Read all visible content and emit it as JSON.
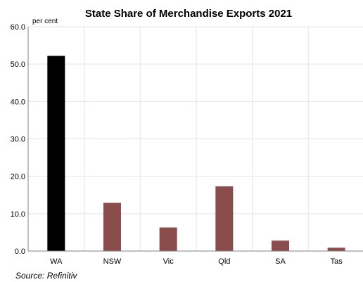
{
  "chart_data": {
    "type": "bar",
    "title": "State Share of Merchandise Exports 2021",
    "ylabel": "per cent",
    "xlabel": "",
    "categories": [
      "WA",
      "NSW",
      "Vic",
      "Qld",
      "SA",
      "Tas"
    ],
    "values": [
      52.2,
      12.9,
      6.3,
      17.3,
      2.8,
      0.9
    ],
    "ylim": [
      0,
      60
    ],
    "yticks": [
      "0.0",
      "10.0",
      "20.0",
      "30.0",
      "40.0",
      "50.0",
      "60.0"
    ],
    "grid": true,
    "legend": "none",
    "colors": {
      "highlight": "#000000",
      "default": "#8b4c4c"
    },
    "highlight_category": "WA"
  },
  "footer": {
    "source": "Source: Refinitiv"
  }
}
